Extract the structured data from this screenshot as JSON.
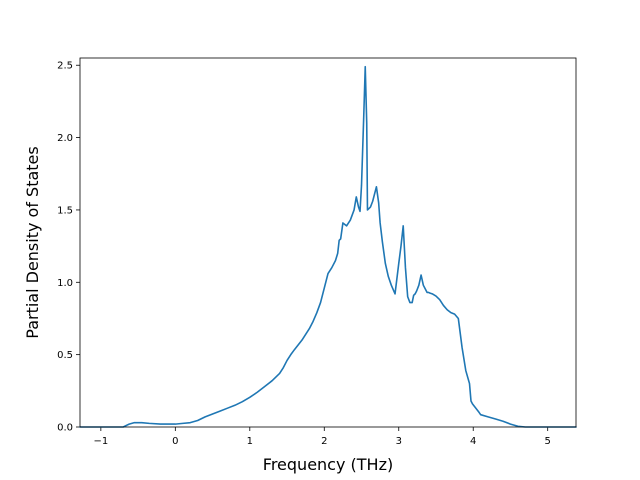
{
  "chart_data": {
    "type": "line",
    "title": "",
    "xlabel": "Frequency (THz)",
    "ylabel": "Partial Density of States",
    "xlim": [
      -1.28,
      5.38
    ],
    "ylim": [
      0,
      2.55
    ],
    "xticks": [
      -1,
      0,
      1,
      2,
      3,
      4,
      5
    ],
    "xtick_labels": [
      "−1",
      "0",
      "1",
      "2",
      "3",
      "4",
      "5"
    ],
    "yticks": [
      0,
      0.5,
      1.0,
      1.5,
      2.0,
      2.5
    ],
    "ytick_labels": [
      "0.0",
      "0.5",
      "1.0",
      "1.5",
      "2.0",
      "2.5"
    ],
    "grid": false,
    "legend": "none",
    "series": [
      {
        "color": "#1f77b4",
        "x": [
          -1.28,
          -0.7,
          -0.62,
          -0.55,
          -0.45,
          -0.35,
          -0.2,
          0.0,
          0.1,
          0.2,
          0.3,
          0.4,
          0.5,
          0.6,
          0.7,
          0.8,
          0.9,
          1.0,
          1.1,
          1.2,
          1.3,
          1.4,
          1.45,
          1.5,
          1.55,
          1.6,
          1.7,
          1.8,
          1.85,
          1.9,
          1.95,
          2.0,
          2.05,
          2.1,
          2.15,
          2.18,
          2.2,
          2.22,
          2.25,
          2.3,
          2.35,
          2.4,
          2.43,
          2.46,
          2.48,
          2.5,
          2.53,
          2.55,
          2.57,
          2.58,
          2.6,
          2.62,
          2.65,
          2.7,
          2.73,
          2.75,
          2.78,
          2.82,
          2.86,
          2.9,
          2.95,
          3.0,
          3.03,
          3.06,
          3.09,
          3.12,
          3.15,
          3.18,
          3.2,
          3.22,
          3.24,
          3.27,
          3.3,
          3.33,
          3.36,
          3.38,
          3.4,
          3.42,
          3.45,
          3.5,
          3.55,
          3.6,
          3.65,
          3.7,
          3.75,
          3.8,
          3.85,
          3.9,
          3.95,
          3.97,
          3.99,
          4.02,
          4.05,
          4.08,
          4.1,
          4.2,
          4.3,
          4.4,
          4.5,
          4.6,
          4.7,
          4.78,
          4.8,
          4.82,
          5.38
        ],
        "y": [
          0.0,
          0.0,
          0.02,
          0.03,
          0.03,
          0.025,
          0.02,
          0.02,
          0.025,
          0.03,
          0.045,
          0.07,
          0.09,
          0.11,
          0.13,
          0.15,
          0.175,
          0.205,
          0.24,
          0.28,
          0.32,
          0.37,
          0.41,
          0.46,
          0.5,
          0.535,
          0.6,
          0.68,
          0.73,
          0.79,
          0.86,
          0.96,
          1.06,
          1.1,
          1.15,
          1.2,
          1.29,
          1.3,
          1.41,
          1.39,
          1.43,
          1.5,
          1.59,
          1.52,
          1.49,
          1.67,
          2.15,
          2.49,
          2.1,
          1.5,
          1.51,
          1.52,
          1.56,
          1.66,
          1.55,
          1.41,
          1.28,
          1.13,
          1.04,
          0.98,
          0.92,
          1.13,
          1.25,
          1.39,
          1.1,
          0.9,
          0.86,
          0.86,
          0.91,
          0.92,
          0.94,
          0.98,
          1.05,
          0.98,
          0.95,
          0.93,
          0.93,
          0.925,
          0.92,
          0.905,
          0.88,
          0.84,
          0.81,
          0.79,
          0.78,
          0.75,
          0.55,
          0.39,
          0.3,
          0.18,
          0.16,
          0.14,
          0.12,
          0.1,
          0.085,
          0.07,
          0.055,
          0.04,
          0.02,
          0.005,
          0.0,
          0.0,
          0.0,
          0.0,
          0.0
        ]
      }
    ]
  }
}
